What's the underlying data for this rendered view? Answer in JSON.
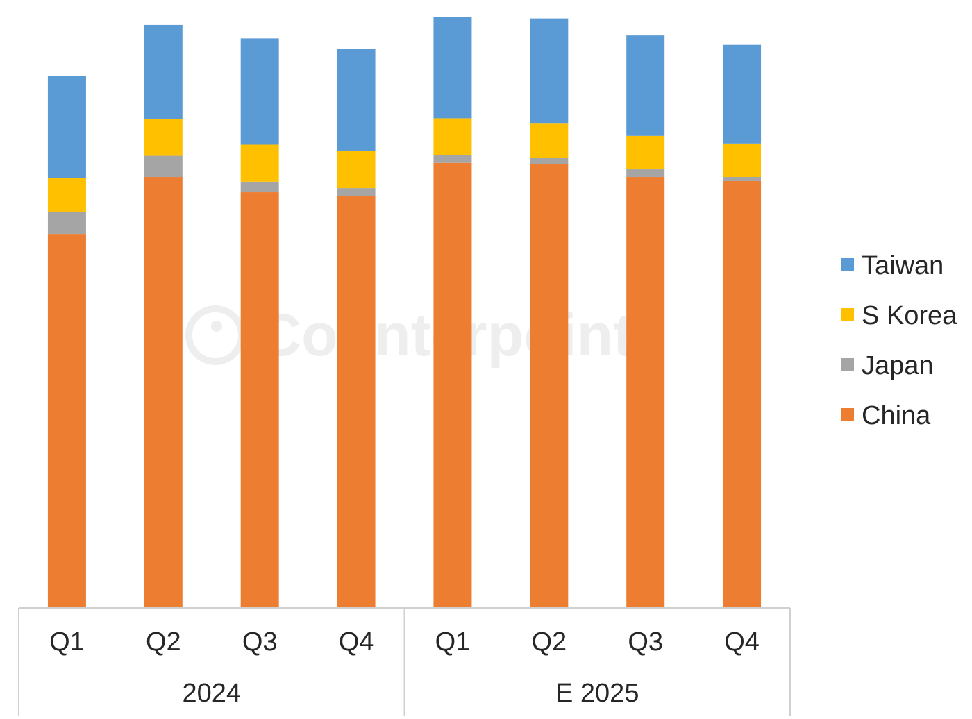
{
  "watermark": "Counterpoint",
  "chart_data": {
    "type": "bar",
    "stacked": true,
    "title": "",
    "xlabel": "",
    "ylabel": "",
    "ylim": [
      0,
      100
    ],
    "grid": false,
    "legend_position": "right",
    "categories": [
      "Q1",
      "Q2",
      "Q3",
      "Q4",
      "Q1",
      "Q2",
      "Q3",
      "Q4"
    ],
    "groups": [
      {
        "label": "2024",
        "categories": [
          "Q1",
          "Q2",
          "Q3",
          "Q4"
        ]
      },
      {
        "label": "E 2025",
        "categories": [
          "Q1",
          "Q2",
          "Q3",
          "Q4"
        ]
      }
    ],
    "series": [
      {
        "name": "China",
        "color": "#ED7D31",
        "values": [
          63.7,
          73.4,
          70.8,
          70.2,
          75.8,
          75.6,
          73.4,
          72.7
        ]
      },
      {
        "name": "Japan",
        "color": "#A5A5A5",
        "values": [
          3.8,
          3.6,
          1.8,
          1.3,
          1.3,
          1.0,
          1.3,
          0.7
        ]
      },
      {
        "name": "S Korea",
        "color": "#FFC000",
        "values": [
          5.7,
          6.3,
          6.3,
          6.3,
          6.3,
          6.0,
          5.7,
          5.7
        ]
      },
      {
        "name": "Taiwan",
        "color": "#5B9BD5",
        "values": [
          17.4,
          16.0,
          18.1,
          17.4,
          17.2,
          17.8,
          17.1,
          16.8
        ]
      }
    ],
    "legend_order": [
      "Taiwan",
      "S Korea",
      "Japan",
      "China"
    ]
  }
}
